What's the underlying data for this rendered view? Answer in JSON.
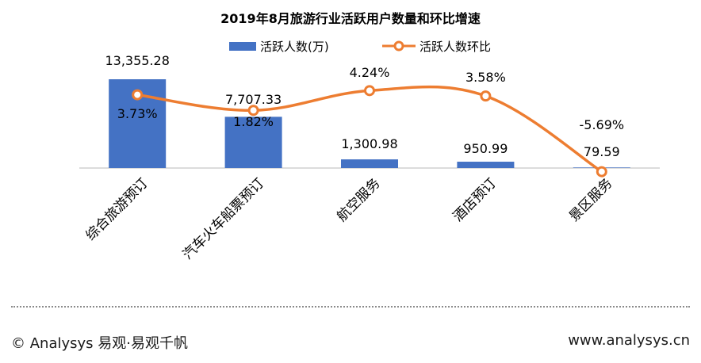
{
  "chart_data": {
    "type": "bar",
    "title": "2019年8月旅游行业活跃用户数量和环比增速",
    "categories": [
      "综合旅游预订",
      "汽车火车船票预订",
      "航空服务",
      "酒店预订",
      "景区服务"
    ],
    "series": [
      {
        "name": "活跃人数(万)",
        "type": "bar",
        "color": "#4472C4",
        "values": [
          13355.28,
          7707.33,
          1300.98,
          950.99,
          79.59
        ],
        "labels": [
          "13,355.28",
          "7,707.33",
          "1,300.98",
          "950.99",
          "79.59"
        ]
      },
      {
        "name": "活跃人数环比",
        "type": "line",
        "color": "#ED7D31",
        "values": [
          3.73,
          1.82,
          4.24,
          3.58,
          -5.69
        ],
        "labels": [
          "3.73%",
          "1.82%",
          "4.24%",
          "3.58%",
          "-5.69%"
        ]
      }
    ],
    "grid": false,
    "legend": "top"
  },
  "footer": {
    "left": "© Analysys 易观·易观千帆",
    "right": "www.analysys.cn"
  }
}
